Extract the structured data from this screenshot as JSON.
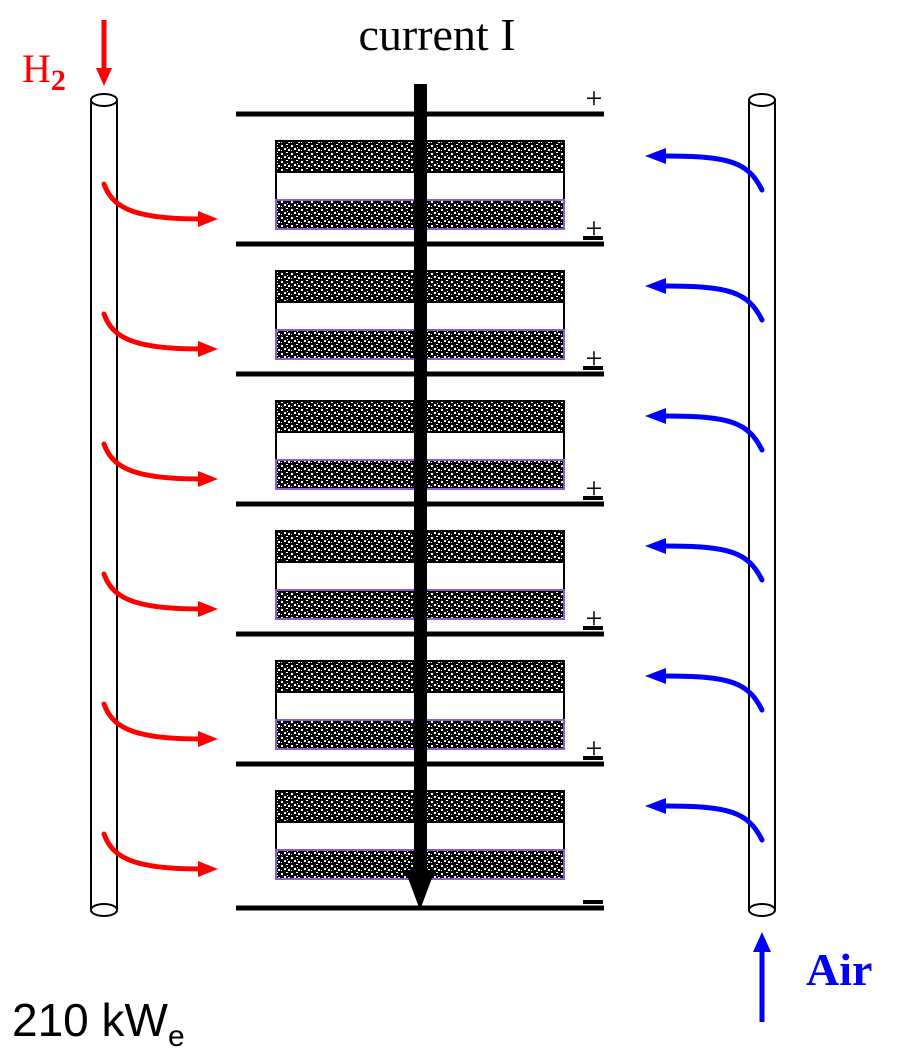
{
  "title": "current I",
  "h2_label": {
    "main": "H",
    "sub": "2"
  },
  "air_label": "Air",
  "power_label": {
    "main": "210 kW",
    "sub": "e"
  },
  "plus_sign": "+",
  "colors": {
    "hydrogen": "#ff0000",
    "air": "#0000ff",
    "structure": "#000000",
    "electrode_edge": "#8a5cc8"
  },
  "cells": [
    {
      "name": "cell-1"
    },
    {
      "name": "cell-2"
    },
    {
      "name": "cell-3"
    },
    {
      "name": "cell-4"
    },
    {
      "name": "cell-5"
    },
    {
      "name": "cell-6"
    }
  ]
}
